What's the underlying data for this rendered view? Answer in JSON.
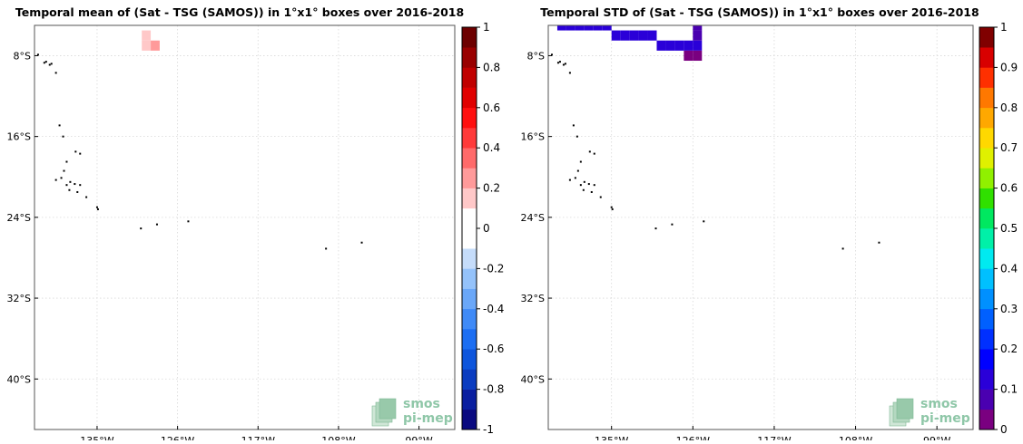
{
  "chart_data": [
    {
      "type": "heatmap",
      "title": "Temporal mean of (Sat - TSG (SAMOS)) in 1°x1° boxes over 2016-2018",
      "xlabel": "",
      "ylabel": "",
      "xlim": [
        -142,
        -95
      ],
      "ylim": [
        -45,
        -5
      ],
      "x_ticks": [
        {
          "value": -135,
          "label": "135°W"
        },
        {
          "value": -126,
          "label": "126°W"
        },
        {
          "value": -117,
          "label": "117°W"
        },
        {
          "value": -108,
          "label": "108°W"
        },
        {
          "value": -99,
          "label": "99°W"
        }
      ],
      "y_ticks": [
        {
          "value": -8,
          "label": "8°S"
        },
        {
          "value": -16,
          "label": "16°S"
        },
        {
          "value": -24,
          "label": "24°S"
        },
        {
          "value": -32,
          "label": "32°S"
        },
        {
          "value": -40,
          "label": "40°S"
        }
      ],
      "grid": true,
      "colorbar": {
        "min": -1,
        "max": 1,
        "step": 0.1,
        "ticks": [
          1,
          0.8,
          0.6,
          0.4,
          0.2,
          0,
          -0.2,
          -0.4,
          -0.6,
          -0.8,
          -1
        ],
        "tick_labels": [
          "1",
          "0.8",
          "0.6",
          "0.4",
          "0.2",
          "0",
          "-0.2",
          "-0.4",
          "-0.6",
          "-0.8",
          "-1"
        ],
        "colors": [
          "#0a0a80",
          "#0a1fa0",
          "#0a3cc0",
          "#0d55dc",
          "#1c6ef2",
          "#3f8af7",
          "#6aa7f8",
          "#94c2fa",
          "#c5dcfa",
          "#ffffff",
          "#ffffff",
          "#ffc8c8",
          "#ff9a9a",
          "#ff6a6a",
          "#ff3a3a",
          "#ff0f0f",
          "#e00000",
          "#c00000",
          "#990000",
          "#6d0000"
        ]
      },
      "cells": [
        {
          "lon": -130,
          "lat": -6,
          "value": 0.15
        },
        {
          "lon": -130,
          "lat": -7,
          "value": 0.15
        },
        {
          "lon": -129,
          "lat": -7,
          "value": 0.25
        }
      ],
      "logo": {
        "line1": "smos",
        "line2": "pi-mep"
      }
    },
    {
      "type": "heatmap",
      "title": "Temporal STD of (Sat - TSG (SAMOS)) in 1°x1° boxes over 2016-2018",
      "xlabel": "",
      "ylabel": "",
      "xlim": [
        -142,
        -95
      ],
      "ylim": [
        -45,
        -5
      ],
      "x_ticks": [
        {
          "value": -135,
          "label": "135°W"
        },
        {
          "value": -126,
          "label": "126°W"
        },
        {
          "value": -117,
          "label": "117°W"
        },
        {
          "value": -108,
          "label": "108°W"
        },
        {
          "value": -99,
          "label": "99°W"
        }
      ],
      "y_ticks": [
        {
          "value": -8,
          "label": "8°S"
        },
        {
          "value": -16,
          "label": "16°S"
        },
        {
          "value": -24,
          "label": "24°S"
        },
        {
          "value": -32,
          "label": "32°S"
        },
        {
          "value": -40,
          "label": "40°S"
        }
      ],
      "grid": true,
      "colorbar": {
        "min": 0,
        "max": 1,
        "step": 0.05,
        "ticks": [
          1,
          0.9,
          0.8,
          0.7,
          0.6,
          0.5,
          0.4,
          0.3,
          0.2,
          0.1,
          0
        ],
        "tick_labels": [
          "1",
          "0.9",
          "0.8",
          "0.7",
          "0.6",
          "0.5",
          "0.4",
          "0.3",
          "0.2",
          "0.1",
          "0"
        ],
        "colors": [
          "#7a0080",
          "#4a00b0",
          "#2a00d8",
          "#0000ff",
          "#0030ff",
          "#0060ff",
          "#0090ff",
          "#00c0ff",
          "#00eaf0",
          "#00f0a8",
          "#00e860",
          "#30e000",
          "#90f000",
          "#e0f000",
          "#ffd800",
          "#ffa800",
          "#ff7800",
          "#ff3000",
          "#d80000",
          "#800000"
        ]
      },
      "cells": [
        {
          "lon": -141,
          "lat": -5,
          "value": 0.1
        },
        {
          "lon": -140,
          "lat": -5,
          "value": 0.1
        },
        {
          "lon": -139,
          "lat": -5,
          "value": 0.1
        },
        {
          "lon": -138,
          "lat": -5,
          "value": 0.1
        },
        {
          "lon": -137,
          "lat": -5,
          "value": 0.1
        },
        {
          "lon": -136,
          "lat": -5,
          "value": 0.1
        },
        {
          "lon": -135,
          "lat": -6,
          "value": 0.13
        },
        {
          "lon": -134,
          "lat": -6,
          "value": 0.13
        },
        {
          "lon": -133,
          "lat": -6,
          "value": 0.13
        },
        {
          "lon": -132,
          "lat": -6,
          "value": 0.12
        },
        {
          "lon": -131,
          "lat": -6,
          "value": 0.12
        },
        {
          "lon": -130,
          "lat": -7,
          "value": 0.13
        },
        {
          "lon": -129,
          "lat": -7,
          "value": 0.13
        },
        {
          "lon": -128,
          "lat": -7,
          "value": 0.13
        },
        {
          "lon": -127,
          "lat": -7,
          "value": 0.13
        },
        {
          "lon": -126,
          "lat": -5,
          "value": 0.05
        },
        {
          "lon": -126,
          "lat": -6,
          "value": 0.05
        },
        {
          "lon": -126,
          "lat": -7,
          "value": 0.13
        },
        {
          "lon": -127,
          "lat": -8,
          "value": 0.03
        },
        {
          "lon": -126,
          "lat": -8,
          "value": 0.03
        }
      ],
      "logo": {
        "line1": "smos",
        "line2": "pi-mep"
      }
    }
  ]
}
